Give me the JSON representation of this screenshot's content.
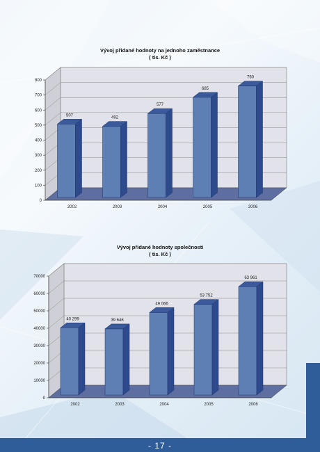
{
  "colors": {
    "bar_front": "#5e7fb3",
    "bar_side": "#2c4a8c",
    "bar_top": "#3a5a9c",
    "floor": "#5f6ea0",
    "wall": "#e2e2ea",
    "accent": "#2f5d9a"
  },
  "page": {
    "number": "- 17 -"
  },
  "chart_data": [
    {
      "type": "bar",
      "title": "Vývoj přidané hodnoty na jednoho zaměstnance",
      "subtitle": "( tis. Kč )",
      "categories": [
        "2002",
        "2003",
        "2004",
        "2005",
        "2006"
      ],
      "values": [
        507,
        492,
        577,
        685,
        760
      ],
      "value_labels": [
        "507",
        "492",
        "577",
        "685",
        "760"
      ],
      "ylim": [
        0,
        800
      ],
      "yticks": [
        "0",
        "100",
        "200",
        "300",
        "400",
        "500",
        "600",
        "700",
        "800"
      ],
      "grid": true,
      "legend": "none"
    },
    {
      "type": "bar",
      "title": "Vývoj přidané hodnoty společnosti",
      "subtitle": "( tis. Kč )",
      "categories": [
        "2002",
        "2003",
        "2004",
        "2005",
        "2006"
      ],
      "values": [
        40299,
        39646,
        49066,
        53752,
        63961
      ],
      "value_labels": [
        "40 299",
        "39 646",
        "49 066",
        "53 752",
        "63 961"
      ],
      "ylim": [
        0,
        70000
      ],
      "yticks": [
        "0",
        "10000",
        "20000",
        "30000",
        "40000",
        "50000",
        "60000",
        "70000"
      ],
      "grid": true,
      "legend": "none"
    }
  ]
}
